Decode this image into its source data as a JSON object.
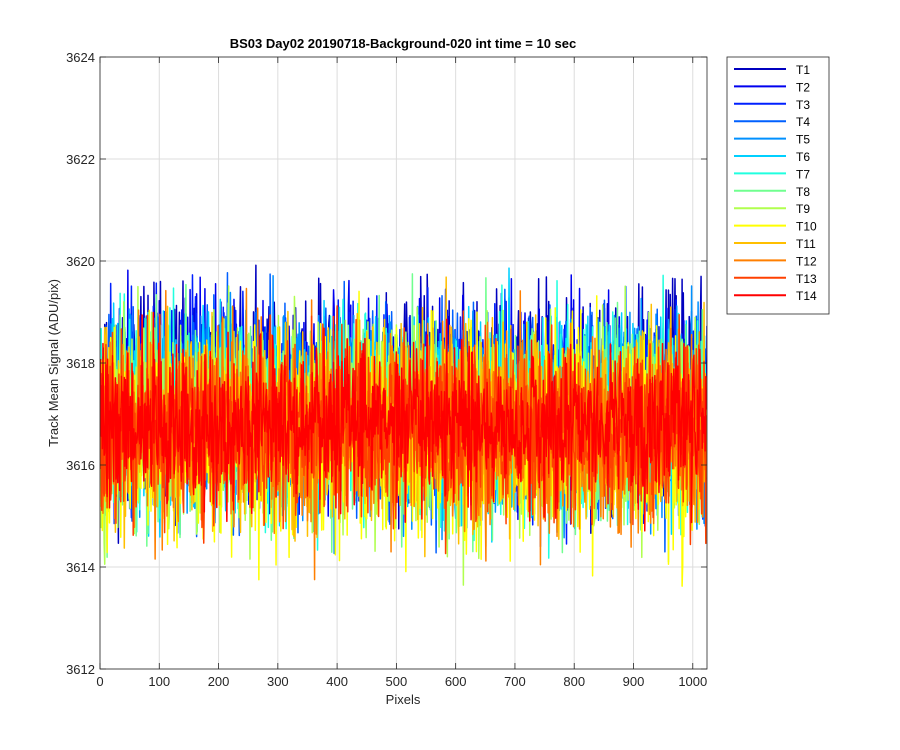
{
  "chart_data": {
    "type": "line",
    "title": "BS03 Day02 20190718-Background-020 int time = 10 sec",
    "xlabel": "Pixels",
    "ylabel": "Track Mean Signal (ADU/pix)",
    "xlim": [
      0,
      1024
    ],
    "ylim": [
      3612,
      3624
    ],
    "xticks": [
      0,
      100,
      200,
      300,
      400,
      500,
      600,
      700,
      800,
      900,
      1000
    ],
    "yticks": [
      3612,
      3614,
      3616,
      3618,
      3620,
      3622,
      3624
    ],
    "grid": true,
    "legend_position": "outside-top-right",
    "x_range": [
      1,
      1024
    ],
    "series": [
      {
        "name": "T1",
        "color": "#0000bf",
        "mean": 3617.4,
        "spread": 3.3,
        "seed": 11
      },
      {
        "name": "T2",
        "color": "#0000ef",
        "mean": 3617.3,
        "spread": 3.2,
        "seed": 23
      },
      {
        "name": "T3",
        "color": "#0020ff",
        "mean": 3617.2,
        "spread": 3.2,
        "seed": 37
      },
      {
        "name": "T4",
        "color": "#0060ff",
        "mean": 3617.1,
        "spread": 3.3,
        "seed": 41
      },
      {
        "name": "T5",
        "color": "#0090ff",
        "mean": 3617.1,
        "spread": 3.3,
        "seed": 53
      },
      {
        "name": "T6",
        "color": "#00d0ff",
        "mean": 3617.0,
        "spread": 3.3,
        "seed": 67
      },
      {
        "name": "T7",
        "color": "#20ffdf",
        "mean": 3617.0,
        "spread": 3.2,
        "seed": 71
      },
      {
        "name": "T8",
        "color": "#70ff8f",
        "mean": 3616.9,
        "spread": 3.3,
        "seed": 83
      },
      {
        "name": "T9",
        "color": "#b0ff4f",
        "mean": 3616.8,
        "spread": 3.5,
        "seed": 97
      },
      {
        "name": "T10",
        "color": "#ffff00",
        "mean": 3616.6,
        "spread": 3.6,
        "seed": 101
      },
      {
        "name": "T11",
        "color": "#ffbf00",
        "mean": 3616.8,
        "spread": 3.3,
        "seed": 113
      },
      {
        "name": "T12",
        "color": "#ff7f00",
        "mean": 3616.7,
        "spread": 3.2,
        "seed": 127
      },
      {
        "name": "T13",
        "color": "#ff4000",
        "mean": 3616.7,
        "spread": 3.0,
        "seed": 131
      },
      {
        "name": "T14",
        "color": "#ff0000",
        "mean": 3616.8,
        "spread": 2.6,
        "seed": 139
      }
    ]
  }
}
